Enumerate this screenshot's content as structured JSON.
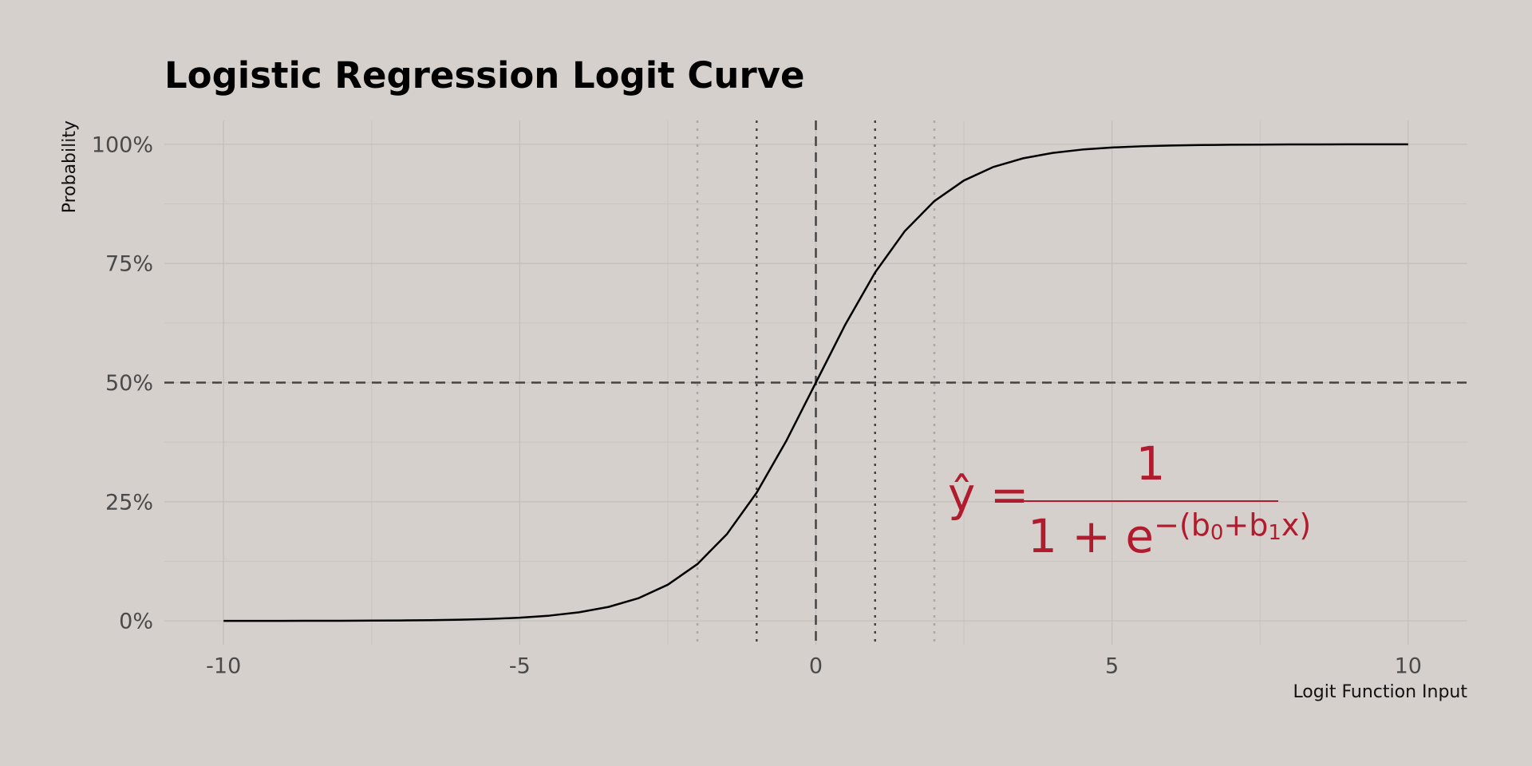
{
  "chart_data": {
    "type": "line",
    "title": "Logistic Regression Logit Curve",
    "xlabel": "Logit Function Input",
    "ylabel": "Probability",
    "x": [
      -10,
      -9.5,
      -9,
      -8.5,
      -8,
      -7.5,
      -7,
      -6.5,
      -6,
      -5.5,
      -5,
      -4.5,
      -4,
      -3.5,
      -3,
      -2.5,
      -2,
      -1.5,
      -1,
      -0.5,
      0,
      0.5,
      1,
      1.5,
      2,
      2.5,
      3,
      3.5,
      4,
      4.5,
      5,
      5.5,
      6,
      6.5,
      7,
      7.5,
      8,
      8.5,
      9,
      9.5,
      10
    ],
    "series": [
      {
        "color": "#000000",
        "values": [
          0.0,
          0.01,
          0.01,
          0.02,
          0.03,
          0.06,
          0.09,
          0.15,
          0.25,
          0.41,
          0.67,
          1.1,
          1.8,
          2.93,
          4.74,
          7.59,
          11.92,
          18.24,
          26.89,
          37.75,
          50,
          62.25,
          73.11,
          81.76,
          88.08,
          92.41,
          95.26,
          97.07,
          98.2,
          98.9,
          99.33,
          99.59,
          99.75,
          99.85,
          99.91,
          99.94,
          99.97,
          99.98,
          99.99,
          99.99,
          100.0
        ]
      }
    ],
    "xlim": [
      -11,
      11
    ],
    "ylim": [
      -5,
      105
    ],
    "xticks": [
      {
        "value": -10,
        "label": "-10"
      },
      {
        "value": -5,
        "label": "-5"
      },
      0,
      5,
      10
    ],
    "yticks": [
      {
        "value": 0,
        "label": "0%"
      },
      {
        "value": 25,
        "label": "25%"
      },
      {
        "value": 50,
        "label": "50%"
      },
      {
        "value": 75,
        "label": "75%"
      },
      {
        "value": 100,
        "label": "100%"
      }
    ],
    "xminor": [
      -7.5,
      -2.5,
      2.5,
      7.5
    ],
    "yminor": [
      12.5,
      37.5,
      62.5,
      87.5
    ],
    "grid": true,
    "hlines": [
      {
        "y": 50,
        "style": "dashed",
        "color": "#444444"
      }
    ],
    "vlines": [
      {
        "x": -2,
        "style": "dotted",
        "color": "#a8a8a8"
      },
      {
        "x": -1,
        "style": "dotted",
        "color": "#444444"
      },
      {
        "x": 0,
        "style": "dashed",
        "color": "#444444"
      },
      {
        "x": 1,
        "style": "dotted",
        "color": "#444444"
      },
      {
        "x": 2,
        "style": "dotted",
        "color": "#a8a8a8"
      }
    ],
    "annotation": {
      "color": "#b01c2e",
      "lhs": "ŷ =",
      "numerator": "1",
      "denominator": "1 + e",
      "exponent": [
        "−(b",
        "0",
        "+b",
        "1",
        "x)"
      ]
    }
  }
}
